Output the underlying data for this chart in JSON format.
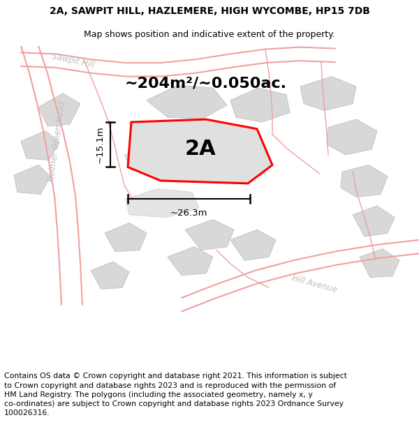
{
  "title_line1": "2A, SAWPIT HILL, HAZLEMERE, HIGH WYCOMBE, HP15 7DB",
  "title_line2": "Map shows position and indicative extent of the property.",
  "footer_text": "Contains OS data © Crown copyright and database right 2021. This information is subject\nto Crown copyright and database rights 2023 and is reproduced with the permission of\nHM Land Registry. The polygons (including the associated geometry, namely x, y\nco-ordinates) are subject to Crown copyright and database rights 2023 Ordnance Survey\n100026316.",
  "area_label": "~204m²/~0.050ac.",
  "plot_label": "2A",
  "dim_width": "~26.3m",
  "dim_height": "~15.1m",
  "bg_color": "#ffffff",
  "map_bg": "#f0f0f0",
  "title_fontsize": 10,
  "subtitle_fontsize": 9,
  "footer_fontsize": 7.8,
  "area_fontsize": 16,
  "plot_label_fontsize": 22,
  "road_label_color": "#c0c0c0",
  "building_fill": "#d8d8d8",
  "building_edge": "#c8c8c8",
  "road_line_color": "#f0a0a0",
  "highlight_color": "#ff0000",
  "highlight_fill": "#e0e0e0"
}
